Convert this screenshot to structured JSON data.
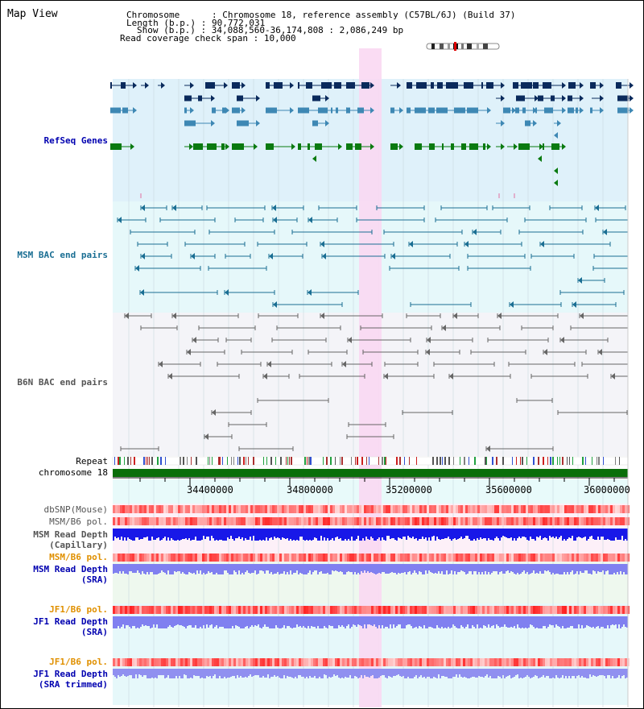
{
  "title": "Map View",
  "header": {
    "chromosome_key": "Chromosome      ",
    "chromosome_val": "Chromosome 18, reference assembly (C57BL/6J) (Build 37)",
    "length_key": "Length (b.p.)",
    "length_val": "90,772,031",
    "show_key": "Show (b.p.)",
    "show_val": "34,088,560-36,174,808 : 2,086,249 bp",
    "coverage_key": "Read coverage check span",
    "coverage_val": "10,000"
  },
  "tracks": {
    "refseq": "RefSeq Genes",
    "msm_bac": "MSM BAC end pairs",
    "b6n_bac": "B6N BAC end pairs",
    "repeat": "Repeat",
    "chromosome": "chromosome 18",
    "dbsnp": "dbSNP(Mouse)",
    "msm_b6_pol_1": "MSM/B6 pol.",
    "msm_read_depth_cap_1": "MSM Read Depth",
    "msm_read_depth_cap_2": "(Capillary)",
    "msm_b6_pol_2": "MSM/B6 pol.",
    "msm_read_depth_sra_1": "MSM Read Depth",
    "msm_read_depth_sra_2": "(SRA)",
    "jf1_b6_pol_1": "JF1/B6 pol.",
    "jf1_read_depth_1": "JF1 Read Depth",
    "jf1_read_depth_2": "(SRA)",
    "jf1_b6_pol_2": "JF1/B6 pol.",
    "jf1_read_depth_trim_1": "JF1 Read Depth",
    "jf1_read_depth_trim_2": "(SRA trimmed)"
  },
  "axis": {
    "ticks": [
      "34400000",
      "34800000",
      "35200000",
      "35600000",
      "36000000"
    ]
  },
  "colors": {
    "refseq_bg": "#dff1fa",
    "msm_bg": "#e6f8fa",
    "b6n_bg": "#f4f4f8",
    "highlight": "#f9d8f2",
    "gene_dark": "#0a2a5c",
    "gene_mid": "#3e88b4",
    "gene_green": "#0a7a10",
    "msm_line": "#1a6e93",
    "b6n_line": "#666666",
    "depth_blue": "#1818e8",
    "depth_light": "#8080f0"
  }
}
